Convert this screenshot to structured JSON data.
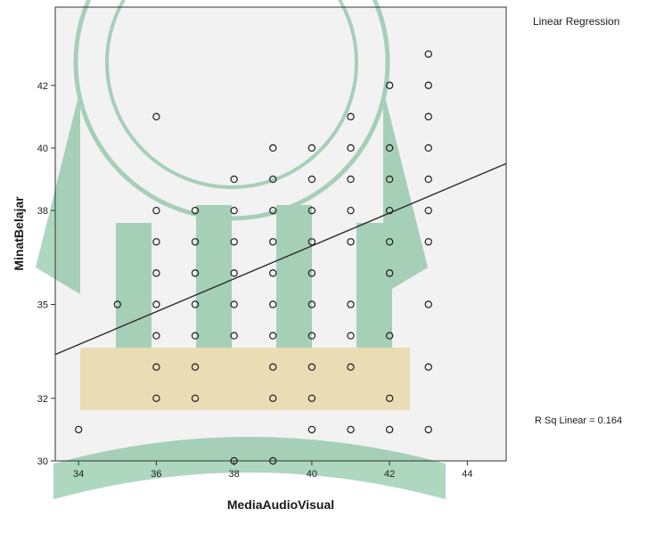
{
  "legend_title": "Linear Regression",
  "fit_label": "R Sq Linear = 0.164",
  "colors": {
    "plot_background": "#f2f2f2",
    "point": "#1e1e1e",
    "line": "#2a2a2a",
    "watermark_green": "#3fa067",
    "watermark_gold": "#e0c060"
  },
  "chart_data": {
    "type": "scatter",
    "xlabel": "MediaAudioVisual",
    "ylabel": "MinatBelajar",
    "xlim": [
      33.4,
      45.0
    ],
    "ylim": [
      30,
      44.5
    ],
    "xticks": [
      34,
      36,
      38,
      40,
      42,
      44
    ],
    "yticks": [
      30,
      32,
      35,
      38,
      40,
      42
    ],
    "ytick_labels": [
      "30",
      "32",
      "35",
      "38",
      "40",
      "42"
    ],
    "grid": false,
    "legend": "right",
    "regression": {
      "r_sq": 0.164,
      "y_at_xmin": 33.4,
      "y_at_xmax": 39.5
    },
    "points": [
      [
        34,
        31
      ],
      [
        35,
        35
      ],
      [
        36,
        41
      ],
      [
        36,
        38
      ],
      [
        36,
        37
      ],
      [
        36,
        36
      ],
      [
        36,
        35
      ],
      [
        36,
        34
      ],
      [
        36,
        33
      ],
      [
        36,
        32
      ],
      [
        37,
        38
      ],
      [
        37,
        37
      ],
      [
        37,
        36
      ],
      [
        37,
        35
      ],
      [
        37,
        34
      ],
      [
        37,
        33
      ],
      [
        37,
        32
      ],
      [
        38,
        39
      ],
      [
        38,
        38
      ],
      [
        38,
        37
      ],
      [
        38,
        36
      ],
      [
        38,
        35
      ],
      [
        38,
        34
      ],
      [
        38,
        30
      ],
      [
        39,
        40
      ],
      [
        39,
        39
      ],
      [
        39,
        38
      ],
      [
        39,
        37
      ],
      [
        39,
        36
      ],
      [
        39,
        35
      ],
      [
        39,
        34
      ],
      [
        39,
        33
      ],
      [
        39,
        32
      ],
      [
        39,
        30
      ],
      [
        40,
        40
      ],
      [
        40,
        39
      ],
      [
        40,
        38
      ],
      [
        40,
        37
      ],
      [
        40,
        36
      ],
      [
        40,
        35
      ],
      [
        40,
        34
      ],
      [
        40,
        33
      ],
      [
        40,
        32
      ],
      [
        40,
        31
      ],
      [
        41,
        41
      ],
      [
        41,
        40
      ],
      [
        41,
        39
      ],
      [
        41,
        38
      ],
      [
        41,
        37
      ],
      [
        41,
        35
      ],
      [
        41,
        34
      ],
      [
        41,
        33
      ],
      [
        41,
        31
      ],
      [
        42,
        42
      ],
      [
        42,
        40
      ],
      [
        42,
        39
      ],
      [
        42,
        38
      ],
      [
        42,
        37
      ],
      [
        42,
        36
      ],
      [
        42,
        34
      ],
      [
        42,
        32
      ],
      [
        42,
        31
      ],
      [
        43,
        43
      ],
      [
        43,
        42
      ],
      [
        43,
        41
      ],
      [
        43,
        40
      ],
      [
        43,
        39
      ],
      [
        43,
        38
      ],
      [
        43,
        37
      ],
      [
        43,
        35
      ],
      [
        43,
        33
      ],
      [
        43,
        31
      ]
    ]
  }
}
